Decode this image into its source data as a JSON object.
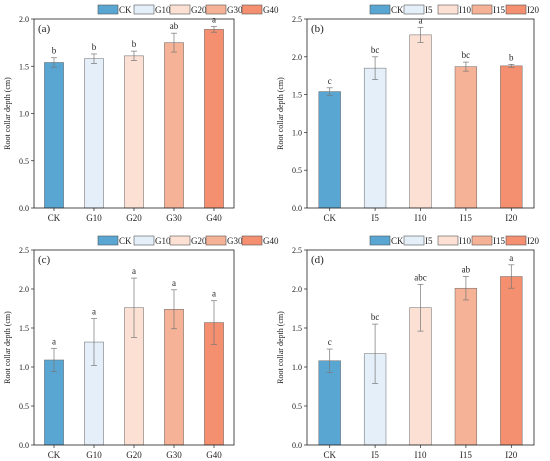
{
  "colors": {
    "CK": "#5aa6d3",
    "L1": "#e4eff9",
    "L2": "#fbe0d3",
    "L3": "#f6b296",
    "L4": "#f48f6f"
  },
  "chart_data": [
    {
      "type": "bar",
      "panel": "(a)",
      "ylabel": "Root collar depth (cm)",
      "ylim": [
        0,
        2.0
      ],
      "yticks": [
        "0.0",
        "0.5",
        "1.0",
        "1.5",
        "2.0"
      ],
      "categories": [
        "CK",
        "G10",
        "G20",
        "G30",
        "G40"
      ],
      "legend": [
        "CK",
        "G10",
        "G20",
        "G30",
        "G40"
      ],
      "values": [
        1.54,
        1.58,
        1.61,
        1.75,
        1.89
      ],
      "errors": [
        0.05,
        0.05,
        0.05,
        0.1,
        0.03
      ],
      "letters": [
        "b",
        "b",
        "b",
        "ab",
        "a"
      ],
      "legend_position": "top"
    },
    {
      "type": "bar",
      "panel": "(b)",
      "ylabel": "Root collar depth (cm)",
      "ylim": [
        0,
        2.5
      ],
      "yticks": [
        "0.0",
        "0.5",
        "1.0",
        "1.5",
        "2.0",
        "2.5"
      ],
      "categories": [
        "CK",
        "I5",
        "I10",
        "I15",
        "I20"
      ],
      "legend": [
        "CK",
        "I5",
        "I10",
        "I15",
        "I20"
      ],
      "values": [
        1.54,
        1.85,
        2.29,
        1.87,
        1.88
      ],
      "errors": [
        0.05,
        0.15,
        0.1,
        0.06,
        0.02
      ],
      "letters": [
        "c",
        "bc",
        "a",
        "bc",
        "b"
      ],
      "legend_position": "top"
    },
    {
      "type": "bar",
      "panel": "(c)",
      "ylabel": "Root collar depth (cm)",
      "ylim": [
        0,
        2.5
      ],
      "yticks": [
        "0.0",
        "0.5",
        "1.0",
        "1.5",
        "2.0",
        "2.5"
      ],
      "categories": [
        "CK",
        "G10",
        "G20",
        "G30",
        "G40"
      ],
      "legend": [
        "CK",
        "G10",
        "G20",
        "G30",
        "G40"
      ],
      "values": [
        1.09,
        1.32,
        1.76,
        1.74,
        1.57
      ],
      "errors": [
        0.15,
        0.3,
        0.38,
        0.25,
        0.28
      ],
      "letters": [
        "a",
        "a",
        "a",
        "a",
        "a"
      ],
      "legend_position": "top"
    },
    {
      "type": "bar",
      "panel": "(d)",
      "ylabel": "Root collar depth (cm)",
      "ylim": [
        0,
        2.5
      ],
      "yticks": [
        "0.0",
        "0.5",
        "1.0",
        "1.5",
        "2.0",
        "2.5"
      ],
      "categories": [
        "CK",
        "I5",
        "I10",
        "I15",
        "I20"
      ],
      "legend": [
        "CK",
        "I5",
        "I10",
        "I15",
        "I20"
      ],
      "values": [
        1.08,
        1.17,
        1.76,
        2.01,
        2.16
      ],
      "errors": [
        0.15,
        0.38,
        0.3,
        0.15,
        0.15
      ],
      "letters": [
        "c",
        "bc",
        "abc",
        "ab",
        "a"
      ],
      "legend_position": "top"
    }
  ]
}
